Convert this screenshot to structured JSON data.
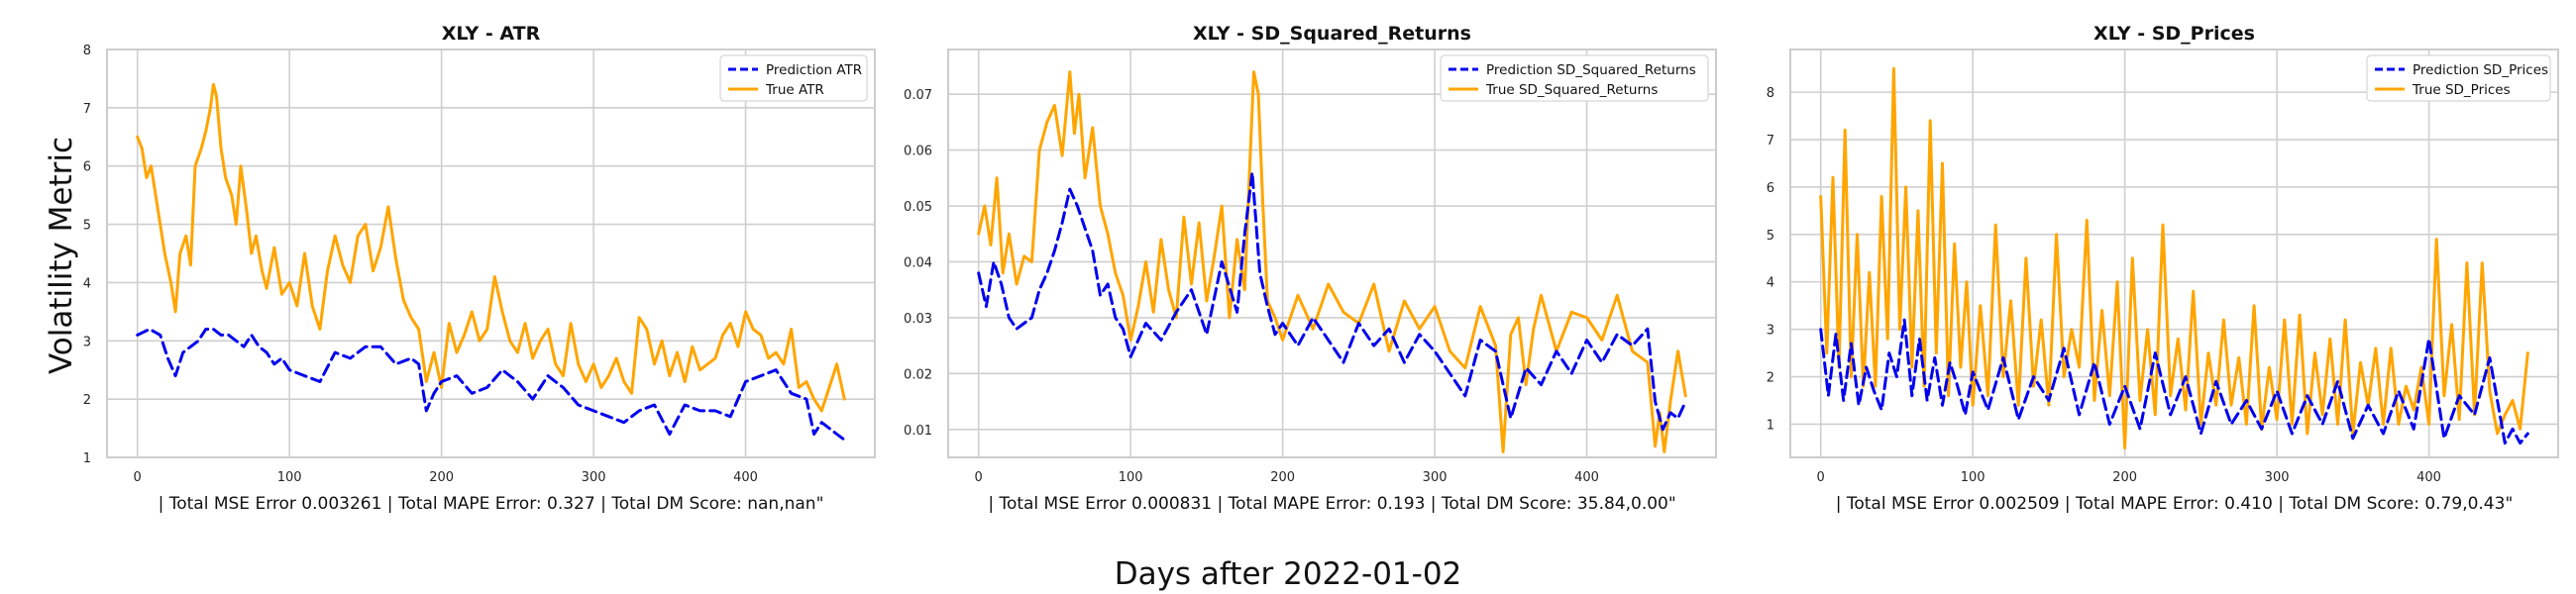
{
  "figure": {
    "ylabel": "Volatility Metric",
    "xlabel": "Days after 2022-01-02"
  },
  "colors": {
    "prediction": "#0000ee",
    "true": "#ffa500"
  },
  "chart_data": [
    {
      "type": "line",
      "title": "XLY - ATR",
      "xlabel": "| Total MSE Error 0.003261 | Total MAPE Error: 0.327 | Total DM Score: nan,nan\"",
      "ylabel": "Volatility Metric",
      "xlim": [
        -20,
        485
      ],
      "ylim": [
        1,
        8
      ],
      "xticks": [
        0,
        100,
        200,
        300,
        400
      ],
      "yticks": [
        1,
        2,
        3,
        4,
        5,
        6,
        7,
        8
      ],
      "legend": "top-right",
      "grid": true,
      "series": [
        {
          "name": "Prediction ATR",
          "style": "dashed",
          "color": "#0000ee",
          "x": [
            0,
            8,
            15,
            20,
            25,
            30,
            35,
            40,
            45,
            50,
            55,
            60,
            65,
            70,
            75,
            80,
            85,
            90,
            95,
            100,
            110,
            120,
            130,
            140,
            150,
            160,
            170,
            180,
            185,
            190,
            195,
            200,
            210,
            220,
            230,
            240,
            250,
            260,
            270,
            280,
            290,
            300,
            310,
            320,
            330,
            340,
            350,
            360,
            370,
            380,
            390,
            400,
            410,
            420,
            430,
            440,
            445,
            450,
            455,
            460,
            465
          ],
          "values": [
            3.1,
            3.2,
            3.1,
            2.7,
            2.4,
            2.8,
            2.9,
            3.0,
            3.2,
            3.2,
            3.1,
            3.1,
            3.0,
            2.9,
            3.1,
            2.9,
            2.8,
            2.6,
            2.7,
            2.5,
            2.4,
            2.3,
            2.8,
            2.7,
            2.9,
            2.9,
            2.6,
            2.7,
            2.6,
            1.8,
            2.1,
            2.3,
            2.4,
            2.1,
            2.2,
            2.5,
            2.3,
            2.0,
            2.4,
            2.2,
            1.9,
            1.8,
            1.7,
            1.6,
            1.8,
            1.9,
            1.4,
            1.9,
            1.8,
            1.8,
            1.7,
            2.3,
            2.4,
            2.5,
            2.1,
            2.0,
            1.4,
            1.6,
            1.5,
            1.4,
            1.3
          ]
        },
        {
          "name": "True ATR",
          "style": "solid",
          "color": "#ffa500",
          "x": [
            0,
            3,
            6,
            9,
            12,
            15,
            18,
            22,
            25,
            28,
            32,
            35,
            38,
            42,
            45,
            48,
            50,
            52,
            55,
            58,
            62,
            65,
            68,
            72,
            75,
            78,
            82,
            85,
            90,
            95,
            100,
            105,
            110,
            115,
            120,
            125,
            130,
            135,
            140,
            145,
            150,
            155,
            160,
            165,
            170,
            175,
            180,
            185,
            190,
            195,
            200,
            205,
            210,
            215,
            220,
            225,
            230,
            235,
            240,
            245,
            250,
            255,
            260,
            265,
            270,
            275,
            280,
            285,
            290,
            295,
            300,
            305,
            310,
            315,
            320,
            325,
            330,
            335,
            340,
            345,
            350,
            355,
            360,
            365,
            370,
            375,
            380,
            385,
            390,
            395,
            400,
            405,
            410,
            415,
            420,
            425,
            430,
            435,
            440,
            445,
            450,
            455,
            460,
            465
          ],
          "values": [
            6.5,
            6.3,
            5.8,
            6.0,
            5.5,
            5.0,
            4.5,
            4.0,
            3.5,
            4.5,
            4.8,
            4.3,
            6.0,
            6.3,
            6.6,
            7.0,
            7.4,
            7.2,
            6.3,
            5.8,
            5.5,
            5.0,
            6.0,
            5.2,
            4.5,
            4.8,
            4.2,
            3.9,
            4.6,
            3.8,
            4.0,
            3.6,
            4.5,
            3.6,
            3.2,
            4.2,
            4.8,
            4.3,
            4.0,
            4.8,
            5.0,
            4.2,
            4.6,
            5.3,
            4.4,
            3.7,
            3.4,
            3.2,
            2.3,
            2.8,
            2.2,
            3.3,
            2.8,
            3.1,
            3.5,
            3.0,
            3.2,
            4.1,
            3.5,
            3.0,
            2.8,
            3.3,
            2.7,
            3.0,
            3.2,
            2.6,
            2.4,
            3.3,
            2.6,
            2.3,
            2.6,
            2.2,
            2.4,
            2.7,
            2.3,
            2.1,
            3.4,
            3.2,
            2.6,
            3.0,
            2.4,
            2.8,
            2.3,
            2.9,
            2.5,
            2.6,
            2.7,
            3.1,
            3.3,
            2.9,
            3.5,
            3.2,
            3.1,
            2.7,
            2.8,
            2.6,
            3.2,
            2.2,
            2.3,
            2.0,
            1.8,
            2.2,
            2.6,
            2.0
          ]
        }
      ]
    },
    {
      "type": "line",
      "title": "XLY - SD_Squared_Returns",
      "xlabel": "| Total MSE Error 0.000831 | Total MAPE Error: 0.193 | Total DM Score: 35.84,0.00\"",
      "xlim": [
        -20,
        485
      ],
      "ylim": [
        0.005,
        0.078
      ],
      "xticks": [
        0,
        100,
        200,
        300,
        400
      ],
      "yticks": [
        0.01,
        0.02,
        0.03,
        0.04,
        0.05,
        0.06,
        0.07
      ],
      "legend": "top-right",
      "grid": true,
      "series": [
        {
          "name": "Prediction SD_Squared_Returns",
          "style": "dashed",
          "color": "#0000ee",
          "x": [
            0,
            5,
            10,
            15,
            20,
            25,
            30,
            35,
            40,
            45,
            50,
            55,
            60,
            65,
            70,
            75,
            80,
            85,
            90,
            95,
            100,
            110,
            120,
            130,
            140,
            150,
            160,
            170,
            175,
            180,
            185,
            190,
            195,
            200,
            210,
            220,
            230,
            240,
            250,
            260,
            270,
            280,
            290,
            300,
            310,
            320,
            330,
            340,
            350,
            360,
            370,
            380,
            390,
            400,
            410,
            420,
            430,
            440,
            445,
            450,
            455,
            460,
            465
          ],
          "values": [
            0.038,
            0.032,
            0.04,
            0.036,
            0.03,
            0.028,
            0.029,
            0.03,
            0.035,
            0.038,
            0.042,
            0.047,
            0.053,
            0.05,
            0.046,
            0.042,
            0.034,
            0.036,
            0.03,
            0.028,
            0.023,
            0.029,
            0.026,
            0.031,
            0.035,
            0.027,
            0.04,
            0.031,
            0.045,
            0.056,
            0.038,
            0.032,
            0.027,
            0.029,
            0.025,
            0.03,
            0.026,
            0.022,
            0.029,
            0.025,
            0.028,
            0.022,
            0.027,
            0.024,
            0.02,
            0.016,
            0.026,
            0.024,
            0.012,
            0.021,
            0.018,
            0.024,
            0.02,
            0.026,
            0.022,
            0.027,
            0.025,
            0.028,
            0.015,
            0.01,
            0.013,
            0.012,
            0.015
          ]
        },
        {
          "name": "True SD_Squared_Returns",
          "style": "solid",
          "color": "#ffa500",
          "x": [
            0,
            4,
            8,
            12,
            16,
            20,
            25,
            30,
            35,
            40,
            45,
            50,
            55,
            60,
            63,
            66,
            70,
            75,
            80,
            85,
            90,
            95,
            100,
            105,
            110,
            115,
            120,
            125,
            130,
            135,
            140,
            145,
            150,
            155,
            160,
            165,
            170,
            175,
            178,
            181,
            184,
            187,
            190,
            195,
            200,
            210,
            220,
            230,
            240,
            250,
            260,
            270,
            280,
            290,
            300,
            310,
            320,
            330,
            340,
            345,
            350,
            355,
            360,
            365,
            370,
            380,
            390,
            400,
            410,
            420,
            430,
            440,
            445,
            448,
            451,
            455,
            460,
            465
          ],
          "values": [
            0.045,
            0.05,
            0.043,
            0.055,
            0.038,
            0.045,
            0.036,
            0.041,
            0.04,
            0.06,
            0.065,
            0.068,
            0.059,
            0.074,
            0.063,
            0.07,
            0.055,
            0.064,
            0.05,
            0.045,
            0.038,
            0.034,
            0.026,
            0.032,
            0.04,
            0.031,
            0.044,
            0.035,
            0.03,
            0.048,
            0.036,
            0.047,
            0.033,
            0.041,
            0.05,
            0.03,
            0.044,
            0.035,
            0.055,
            0.074,
            0.07,
            0.05,
            0.033,
            0.03,
            0.026,
            0.034,
            0.028,
            0.036,
            0.031,
            0.029,
            0.036,
            0.024,
            0.033,
            0.028,
            0.032,
            0.024,
            0.021,
            0.032,
            0.025,
            0.006,
            0.027,
            0.03,
            0.018,
            0.028,
            0.034,
            0.024,
            0.031,
            0.03,
            0.026,
            0.034,
            0.024,
            0.022,
            0.007,
            0.013,
            0.006,
            0.015,
            0.024,
            0.016
          ]
        }
      ]
    },
    {
      "type": "line",
      "title": "XLY - SD_Prices",
      "xlabel": "| Total MSE Error 0.002509 | Total MAPE Error: 0.410 | Total DM Score: 0.79,0.43\"",
      "xlim": [
        -20,
        485
      ],
      "ylim": [
        0.3,
        8.9
      ],
      "xticks": [
        0,
        100,
        200,
        300,
        400
      ],
      "yticks": [
        1,
        2,
        3,
        4,
        5,
        6,
        7,
        8
      ],
      "legend": "top-right",
      "grid": true,
      "series": [
        {
          "name": "Prediction SD_Prices",
          "style": "dashed",
          "color": "#0000ee",
          "x": [
            0,
            5,
            10,
            15,
            20,
            25,
            30,
            35,
            40,
            45,
            50,
            55,
            60,
            65,
            70,
            75,
            80,
            85,
            90,
            95,
            100,
            110,
            120,
            130,
            140,
            150,
            160,
            170,
            180,
            190,
            200,
            210,
            220,
            230,
            240,
            250,
            260,
            270,
            280,
            290,
            300,
            310,
            320,
            330,
            340,
            350,
            360,
            370,
            380,
            390,
            400,
            410,
            420,
            430,
            440,
            450,
            455,
            460,
            465
          ],
          "values": [
            3.0,
            1.6,
            2.9,
            1.5,
            2.7,
            1.4,
            2.2,
            1.7,
            1.3,
            2.5,
            2.0,
            3.2,
            1.6,
            2.8,
            1.5,
            2.4,
            1.4,
            2.3,
            1.8,
            1.2,
            2.1,
            1.3,
            2.4,
            1.1,
            2.0,
            1.5,
            2.6,
            1.2,
            2.3,
            1.0,
            1.8,
            0.9,
            2.5,
            1.2,
            2.0,
            0.8,
            1.9,
            1.0,
            1.5,
            0.9,
            1.7,
            0.8,
            1.6,
            1.0,
            1.9,
            0.7,
            1.4,
            0.8,
            1.7,
            0.9,
            2.8,
            0.7,
            1.6,
            1.2,
            2.4,
            0.6,
            0.9,
            0.6,
            0.8
          ]
        },
        {
          "name": "True SD_Prices",
          "style": "solid",
          "color": "#ffa500",
          "x": [
            0,
            4,
            8,
            12,
            16,
            20,
            24,
            28,
            32,
            36,
            40,
            44,
            48,
            52,
            56,
            60,
            64,
            68,
            72,
            76,
            80,
            84,
            88,
            92,
            96,
            100,
            105,
            110,
            115,
            120,
            125,
            130,
            135,
            140,
            145,
            150,
            155,
            160,
            165,
            170,
            175,
            180,
            185,
            190,
            195,
            200,
            205,
            210,
            215,
            220,
            225,
            230,
            235,
            240,
            245,
            250,
            255,
            260,
            265,
            270,
            275,
            280,
            285,
            290,
            295,
            300,
            305,
            310,
            315,
            320,
            325,
            330,
            335,
            340,
            345,
            350,
            355,
            360,
            365,
            370,
            375,
            380,
            385,
            390,
            395,
            400,
            405,
            410,
            415,
            420,
            425,
            430,
            435,
            440,
            445,
            450,
            455,
            460,
            465
          ],
          "values": [
            5.8,
            2.5,
            6.2,
            2.2,
            7.2,
            2.0,
            5.0,
            1.8,
            4.2,
            1.8,
            5.8,
            2.8,
            8.5,
            3.0,
            6.0,
            2.2,
            5.5,
            1.8,
            7.4,
            2.5,
            6.5,
            1.6,
            4.8,
            2.2,
            4.0,
            1.4,
            3.5,
            1.6,
            5.2,
            2.0,
            3.6,
            1.4,
            4.5,
            1.8,
            3.2,
            1.4,
            5.0,
            2.0,
            3.0,
            2.2,
            5.3,
            1.5,
            3.4,
            1.6,
            4.0,
            0.5,
            4.5,
            1.5,
            3.0,
            1.2,
            5.2,
            1.6,
            2.8,
            1.3,
            3.8,
            1.0,
            2.5,
            1.4,
            3.2,
            1.4,
            2.4,
            1.0,
            3.5,
            0.9,
            2.2,
            1.1,
            3.2,
            1.0,
            3.3,
            0.8,
            2.5,
            1.2,
            2.8,
            1.0,
            3.2,
            0.8,
            2.3,
            1.4,
            2.6,
            1.0,
            2.6,
            1.0,
            1.8,
            1.3,
            2.2,
            1.0,
            4.9,
            1.6,
            3.1,
            1.1,
            4.4,
            1.2,
            4.4,
            1.7,
            0.8,
            1.2,
            1.5,
            0.9,
            2.5
          ]
        }
      ]
    }
  ]
}
